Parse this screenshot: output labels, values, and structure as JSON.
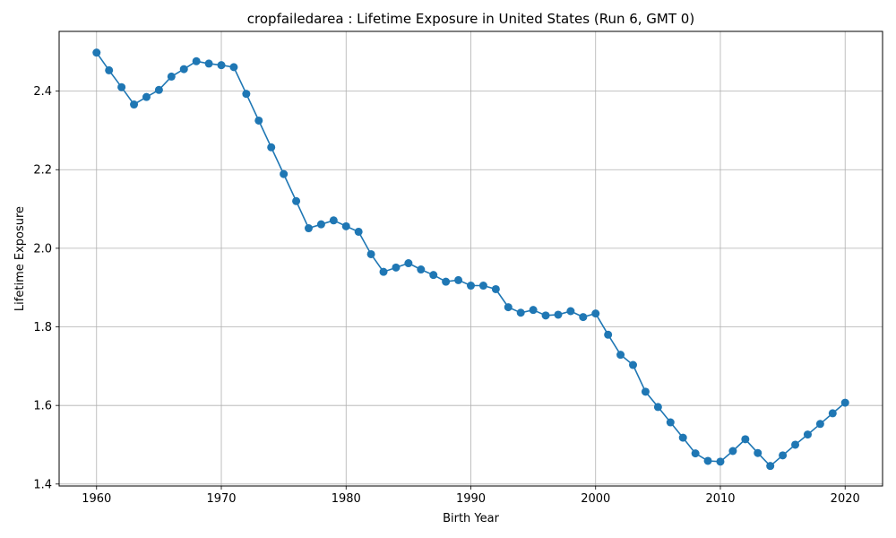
{
  "chart_data": {
    "type": "line",
    "title": "cropfailedarea : Lifetime Exposure in United States (Run 6, GMT 0)",
    "xlabel": "Birth Year",
    "ylabel": "Lifetime Exposure",
    "xlim": [
      1957,
      2023
    ],
    "ylim": [
      1.395,
      2.552
    ],
    "xticks": [
      1960,
      1970,
      1980,
      1990,
      2000,
      2010,
      2020
    ],
    "xtick_labels": [
      "1960",
      "1970",
      "1980",
      "1990",
      "2000",
      "2010",
      "2020"
    ],
    "yticks": [
      1.4,
      1.6,
      1.8,
      2.0,
      2.2,
      2.4
    ],
    "ytick_labels": [
      "1.4",
      "1.6",
      "1.8",
      "2.0",
      "2.2",
      "2.4"
    ],
    "grid": true,
    "color": "#1f77b4",
    "x": [
      1960,
      1961,
      1962,
      1963,
      1964,
      1965,
      1966,
      1967,
      1968,
      1969,
      1970,
      1971,
      1972,
      1973,
      1974,
      1975,
      1976,
      1977,
      1978,
      1979,
      1980,
      1981,
      1982,
      1983,
      1984,
      1985,
      1986,
      1987,
      1988,
      1989,
      1990,
      1991,
      1992,
      1993,
      1994,
      1995,
      1996,
      1997,
      1998,
      1999,
      2000,
      2001,
      2002,
      2003,
      2004,
      2005,
      2006,
      2007,
      2008,
      2009,
      2010,
      2011,
      2012,
      2013,
      2014,
      2015,
      2016,
      2017,
      2018,
      2019,
      2020
    ],
    "values": [
      2.498,
      2.453,
      2.41,
      2.366,
      2.385,
      2.403,
      2.437,
      2.456,
      2.476,
      2.47,
      2.466,
      2.461,
      2.393,
      2.325,
      2.257,
      2.189,
      2.12,
      2.051,
      2.061,
      2.071,
      2.056,
      2.042,
      1.985,
      1.94,
      1.951,
      1.962,
      1.946,
      1.932,
      1.915,
      1.919,
      1.905,
      1.905,
      1.896,
      1.85,
      1.836,
      1.843,
      1.829,
      1.831,
      1.84,
      1.825,
      1.834,
      1.78,
      1.729,
      1.703,
      1.635,
      1.596,
      1.557,
      1.518,
      1.478,
      1.459,
      1.457,
      1.484,
      1.514,
      1.479,
      1.446,
      1.473,
      1.5,
      1.526,
      1.553,
      1.58,
      1.607
    ]
  }
}
